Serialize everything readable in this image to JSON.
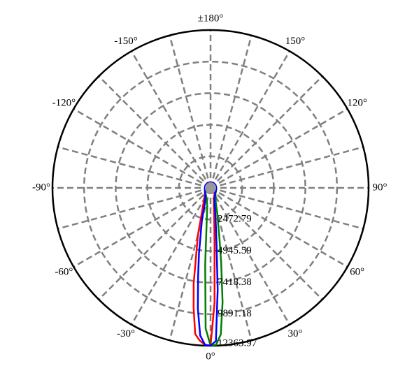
{
  "chart_data": {
    "type": "polar",
    "x": [
      -180,
      -150,
      -120,
      -90,
      -60,
      -40,
      -30,
      -20,
      -15,
      -10,
      -8,
      -6,
      -4,
      -2,
      0,
      2,
      4,
      6,
      8,
      10,
      15,
      20,
      30,
      40,
      60,
      90,
      120,
      150,
      180
    ],
    "series": [
      {
        "color": "#ff0000",
        "values": [
          450,
          450,
          450,
          450,
          500,
          700,
          1000,
          1900,
          3800,
          7600,
          9500,
          11500,
          12000,
          12300,
          12350,
          9000,
          4500,
          2800,
          2000,
          1500,
          1000,
          800,
          600,
          500,
          450,
          450,
          450,
          450,
          450
        ]
      },
      {
        "color": "#008000",
        "values": [
          450,
          450,
          450,
          450,
          500,
          600,
          700,
          900,
          1100,
          1500,
          2000,
          3000,
          6000,
          11000,
          12360,
          12300,
          11500,
          9000,
          6000,
          4000,
          2000,
          1200,
          800,
          600,
          500,
          450,
          450,
          450,
          450
        ]
      },
      {
        "color": "#0000ff",
        "values": [
          450,
          450,
          450,
          450,
          500,
          650,
          800,
          1300,
          2600,
          5200,
          7000,
          9500,
          11600,
          12300,
          12360,
          12000,
          8000,
          4500,
          3000,
          2200,
          1200,
          900,
          700,
          550,
          480,
          450,
          450,
          450,
          450
        ]
      }
    ],
    "rlim": [
      0,
      12363.97
    ],
    "rticks": [
      2472.79,
      4945.59,
      7418.38,
      9891.18,
      12363.97
    ],
    "xticks": [
      {
        "value": 0,
        "label": "0°"
      },
      {
        "value": 30,
        "label": "30°"
      },
      {
        "value": 60,
        "label": "60°"
      },
      {
        "value": 90,
        "label": "90°"
      },
      {
        "value": 120,
        "label": "120°"
      },
      {
        "value": 150,
        "label": "150°"
      },
      {
        "value": 180,
        "label": "±180°"
      },
      {
        "value": -150,
        "label": "-150°"
      },
      {
        "value": -120,
        "label": "-120°"
      },
      {
        "value": -90,
        "label": "-90°"
      },
      {
        "value": -60,
        "label": "-60°"
      },
      {
        "value": -30,
        "label": "-30°"
      }
    ],
    "thetagrid": [
      0,
      15,
      30,
      45,
      60,
      75,
      90,
      105,
      120,
      135,
      150,
      165,
      180,
      -165,
      -150,
      -135,
      -120,
      -105,
      -90,
      -75,
      -60,
      -45,
      -30,
      -15
    ],
    "grid": true
  }
}
